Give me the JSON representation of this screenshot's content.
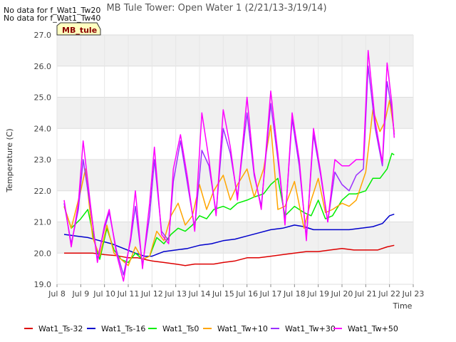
{
  "notes": [
    "No data for f_Wat1_Tw20",
    "No data for f_Wat1_Tw40"
  ],
  "badge": "MB_tule",
  "chart_data": {
    "type": "line",
    "title": "MB Tule Tower: Open Water 1 (2/21/13-3/19/14)",
    "xlabel": "Time",
    "ylabel": "Temperature (C)",
    "xlim": [
      8,
      23
    ],
    "ylim": [
      19.0,
      27.0
    ],
    "grid": true,
    "legend_position": "bottom",
    "x_ticks": [
      {
        "value": 8,
        "label": "Jul 8"
      },
      {
        "value": 9,
        "label": "Jul 9"
      },
      {
        "value": 10,
        "label": "Jul 10"
      },
      {
        "value": 11,
        "label": "Jul 11"
      },
      {
        "value": 12,
        "label": "Jul 12"
      },
      {
        "value": 13,
        "label": "Jul 13"
      },
      {
        "value": 14,
        "label": "Jul 14"
      },
      {
        "value": 15,
        "label": "Jul 15"
      },
      {
        "value": 16,
        "label": "Jul 16"
      },
      {
        "value": 17,
        "label": "Jul 17"
      },
      {
        "value": 18,
        "label": "Jul 18"
      },
      {
        "value": 19,
        "label": "Jul 19"
      },
      {
        "value": 20,
        "label": "Jul 20"
      },
      {
        "value": 21,
        "label": "Jul 21"
      },
      {
        "value": 22,
        "label": "Jul 22"
      },
      {
        "value": 23,
        "label": "Jul 23"
      }
    ],
    "y_ticks": [
      "19.0",
      "20.0",
      "21.0",
      "22.0",
      "23.0",
      "24.0",
      "25.0",
      "26.0",
      "27.0"
    ],
    "series": [
      {
        "name": "Wat1_Ts-32",
        "color": "#dd0000",
        "points": [
          [
            8.3,
            20.0
          ],
          [
            8.6,
            20.0
          ],
          [
            9.0,
            20.0
          ],
          [
            9.5,
            20.0
          ],
          [
            10.0,
            19.95
          ],
          [
            10.5,
            19.92
          ],
          [
            11.0,
            19.85
          ],
          [
            11.4,
            19.85
          ],
          [
            11.8,
            19.78
          ],
          [
            12.0,
            19.75
          ],
          [
            12.5,
            19.7
          ],
          [
            13.0,
            19.65
          ],
          [
            13.4,
            19.6
          ],
          [
            13.8,
            19.65
          ],
          [
            14.2,
            19.65
          ],
          [
            14.6,
            19.65
          ],
          [
            15.0,
            19.7
          ],
          [
            15.5,
            19.75
          ],
          [
            16.0,
            19.85
          ],
          [
            16.5,
            19.85
          ],
          [
            17.0,
            19.9
          ],
          [
            17.5,
            19.95
          ],
          [
            18.0,
            20.0
          ],
          [
            18.5,
            20.05
          ],
          [
            19.0,
            20.05
          ],
          [
            19.5,
            20.1
          ],
          [
            20.0,
            20.15
          ],
          [
            20.5,
            20.1
          ],
          [
            21.0,
            20.1
          ],
          [
            21.5,
            20.1
          ],
          [
            21.9,
            20.2
          ],
          [
            22.2,
            20.25
          ]
        ]
      },
      {
        "name": "Wat1_Ts-16",
        "color": "#0000cc",
        "points": [
          [
            8.3,
            20.6
          ],
          [
            8.8,
            20.55
          ],
          [
            9.3,
            20.5
          ],
          [
            9.8,
            20.4
          ],
          [
            10.3,
            20.3
          ],
          [
            10.8,
            20.15
          ],
          [
            11.3,
            20.0
          ],
          [
            11.7,
            19.9
          ],
          [
            12.0,
            19.9
          ],
          [
            12.5,
            20.05
          ],
          [
            13.0,
            20.1
          ],
          [
            13.5,
            20.15
          ],
          [
            14.0,
            20.25
          ],
          [
            14.5,
            20.3
          ],
          [
            15.0,
            20.4
          ],
          [
            15.5,
            20.45
          ],
          [
            16.0,
            20.55
          ],
          [
            16.5,
            20.65
          ],
          [
            17.0,
            20.75
          ],
          [
            17.5,
            20.8
          ],
          [
            18.0,
            20.9
          ],
          [
            18.4,
            20.85
          ],
          [
            18.8,
            20.75
          ],
          [
            19.3,
            20.75
          ],
          [
            19.8,
            20.75
          ],
          [
            20.3,
            20.75
          ],
          [
            20.8,
            20.8
          ],
          [
            21.3,
            20.85
          ],
          [
            21.7,
            20.95
          ],
          [
            22.0,
            21.2
          ],
          [
            22.2,
            21.25
          ]
        ]
      },
      {
        "name": "Wat1_Ts0",
        "color": "#00ee00",
        "points": [
          [
            8.3,
            21.5
          ],
          [
            8.6,
            20.8
          ],
          [
            9.0,
            21.1
          ],
          [
            9.3,
            21.4
          ],
          [
            9.6,
            20.3
          ],
          [
            9.8,
            19.8
          ],
          [
            10.1,
            20.8
          ],
          [
            10.4,
            20.1
          ],
          [
            10.7,
            19.8
          ],
          [
            11.0,
            19.7
          ],
          [
            11.3,
            20.0
          ],
          [
            11.6,
            19.8
          ],
          [
            11.9,
            19.9
          ],
          [
            12.2,
            20.5
          ],
          [
            12.5,
            20.3
          ],
          [
            12.8,
            20.6
          ],
          [
            13.1,
            20.8
          ],
          [
            13.4,
            20.7
          ],
          [
            13.7,
            20.9
          ],
          [
            14.0,
            21.2
          ],
          [
            14.3,
            21.1
          ],
          [
            14.6,
            21.4
          ],
          [
            15.0,
            21.5
          ],
          [
            15.3,
            21.4
          ],
          [
            15.6,
            21.6
          ],
          [
            16.0,
            21.7
          ],
          [
            16.3,
            21.8
          ],
          [
            16.7,
            21.9
          ],
          [
            17.0,
            22.2
          ],
          [
            17.3,
            22.4
          ],
          [
            17.6,
            21.2
          ],
          [
            18.0,
            21.5
          ],
          [
            18.4,
            21.3
          ],
          [
            18.7,
            21.2
          ],
          [
            19.0,
            21.7
          ],
          [
            19.3,
            21.1
          ],
          [
            19.6,
            21.2
          ],
          [
            20.0,
            21.7
          ],
          [
            20.3,
            21.9
          ],
          [
            20.6,
            21.9
          ],
          [
            21.0,
            22.0
          ],
          [
            21.3,
            22.4
          ],
          [
            21.6,
            22.4
          ],
          [
            21.9,
            22.7
          ],
          [
            22.1,
            23.2
          ],
          [
            22.2,
            23.15
          ]
        ]
      },
      {
        "name": "Wat1_Tw+10",
        "color": "#ffa500",
        "points": [
          [
            8.3,
            21.5
          ],
          [
            8.6,
            20.8
          ],
          [
            9.0,
            22.0
          ],
          [
            9.2,
            22.7
          ],
          [
            9.5,
            20.5
          ],
          [
            9.8,
            19.9
          ],
          [
            10.1,
            20.9
          ],
          [
            10.4,
            20.0
          ],
          [
            10.7,
            19.8
          ],
          [
            11.0,
            19.6
          ],
          [
            11.3,
            20.2
          ],
          [
            11.6,
            19.8
          ],
          [
            11.9,
            19.9
          ],
          [
            12.2,
            20.7
          ],
          [
            12.5,
            20.4
          ],
          [
            12.8,
            21.2
          ],
          [
            13.1,
            21.6
          ],
          [
            13.4,
            20.9
          ],
          [
            13.7,
            21.2
          ],
          [
            14.0,
            22.2
          ],
          [
            14.3,
            21.4
          ],
          [
            14.6,
            22.0
          ],
          [
            15.0,
            22.5
          ],
          [
            15.3,
            21.7
          ],
          [
            15.6,
            22.2
          ],
          [
            16.0,
            22.7
          ],
          [
            16.3,
            21.8
          ],
          [
            16.7,
            22.7
          ],
          [
            17.0,
            24.1
          ],
          [
            17.3,
            21.4
          ],
          [
            17.6,
            21.5
          ],
          [
            18.0,
            22.3
          ],
          [
            18.4,
            20.8
          ],
          [
            18.7,
            21.7
          ],
          [
            19.0,
            22.4
          ],
          [
            19.3,
            21.3
          ],
          [
            19.6,
            21.4
          ],
          [
            20.0,
            21.6
          ],
          [
            20.3,
            21.5
          ],
          [
            20.6,
            21.7
          ],
          [
            21.0,
            22.6
          ],
          [
            21.3,
            24.6
          ],
          [
            21.6,
            23.9
          ],
          [
            21.8,
            24.2
          ],
          [
            22.0,
            24.9
          ],
          [
            22.2,
            23.9
          ]
        ]
      },
      {
        "name": "Wat1_Tw+30",
        "color": "#9b30ff",
        "points": [
          [
            8.3,
            21.6
          ],
          [
            8.6,
            20.3
          ],
          [
            8.9,
            21.4
          ],
          [
            9.1,
            23.0
          ],
          [
            9.4,
            21.5
          ],
          [
            9.7,
            19.8
          ],
          [
            10.0,
            20.8
          ],
          [
            10.2,
            21.3
          ],
          [
            10.5,
            20.1
          ],
          [
            10.8,
            19.3
          ],
          [
            11.1,
            20.4
          ],
          [
            11.3,
            21.5
          ],
          [
            11.6,
            19.6
          ],
          [
            11.9,
            21.2
          ],
          [
            12.1,
            23.0
          ],
          [
            12.4,
            20.7
          ],
          [
            12.7,
            20.4
          ],
          [
            12.9,
            22.3
          ],
          [
            13.2,
            23.6
          ],
          [
            13.5,
            22.2
          ],
          [
            13.8,
            20.8
          ],
          [
            14.1,
            23.3
          ],
          [
            14.4,
            22.8
          ],
          [
            14.7,
            21.3
          ],
          [
            15.0,
            24.0
          ],
          [
            15.3,
            23.2
          ],
          [
            15.6,
            21.8
          ],
          [
            16.0,
            24.5
          ],
          [
            16.3,
            22.5
          ],
          [
            16.6,
            21.5
          ],
          [
            17.0,
            24.8
          ],
          [
            17.3,
            23.0
          ],
          [
            17.6,
            21.0
          ],
          [
            17.9,
            24.3
          ],
          [
            18.2,
            22.8
          ],
          [
            18.5,
            20.5
          ],
          [
            18.8,
            23.8
          ],
          [
            19.1,
            22.5
          ],
          [
            19.4,
            21.0
          ],
          [
            19.7,
            22.6
          ],
          [
            20.0,
            22.2
          ],
          [
            20.3,
            22.0
          ],
          [
            20.6,
            22.5
          ],
          [
            20.9,
            22.7
          ],
          [
            21.1,
            26.0
          ],
          [
            21.4,
            24.0
          ],
          [
            21.7,
            22.8
          ],
          [
            21.9,
            25.5
          ],
          [
            22.1,
            24.6
          ],
          [
            22.2,
            23.8
          ]
        ]
      },
      {
        "name": "Wat1_Tw+50",
        "color": "#ff00ff",
        "points": [
          [
            8.3,
            21.7
          ],
          [
            8.6,
            20.2
          ],
          [
            8.9,
            21.6
          ],
          [
            9.1,
            23.6
          ],
          [
            9.4,
            21.6
          ],
          [
            9.7,
            19.7
          ],
          [
            10.0,
            20.9
          ],
          [
            10.2,
            21.4
          ],
          [
            10.5,
            20.0
          ],
          [
            10.8,
            19.1
          ],
          [
            11.1,
            20.5
          ],
          [
            11.3,
            22.0
          ],
          [
            11.6,
            19.5
          ],
          [
            11.9,
            21.6
          ],
          [
            12.1,
            23.4
          ],
          [
            12.4,
            20.6
          ],
          [
            12.7,
            20.3
          ],
          [
            12.9,
            22.7
          ],
          [
            13.2,
            23.8
          ],
          [
            13.5,
            22.4
          ],
          [
            13.8,
            20.7
          ],
          [
            14.1,
            24.5
          ],
          [
            14.4,
            23.0
          ],
          [
            14.7,
            21.2
          ],
          [
            15.0,
            24.6
          ],
          [
            15.3,
            23.4
          ],
          [
            15.6,
            21.7
          ],
          [
            16.0,
            25.0
          ],
          [
            16.3,
            22.6
          ],
          [
            16.6,
            21.4
          ],
          [
            17.0,
            25.2
          ],
          [
            17.3,
            23.2
          ],
          [
            17.6,
            20.9
          ],
          [
            17.9,
            24.5
          ],
          [
            18.2,
            23.0
          ],
          [
            18.5,
            20.4
          ],
          [
            18.8,
            24.0
          ],
          [
            19.1,
            22.6
          ],
          [
            19.4,
            21.0
          ],
          [
            19.7,
            23.0
          ],
          [
            20.0,
            22.8
          ],
          [
            20.3,
            22.8
          ],
          [
            20.6,
            23.0
          ],
          [
            20.9,
            23.0
          ],
          [
            21.1,
            26.5
          ],
          [
            21.4,
            24.2
          ],
          [
            21.7,
            22.9
          ],
          [
            21.9,
            26.1
          ],
          [
            22.1,
            24.8
          ],
          [
            22.2,
            23.7
          ]
        ]
      }
    ]
  }
}
